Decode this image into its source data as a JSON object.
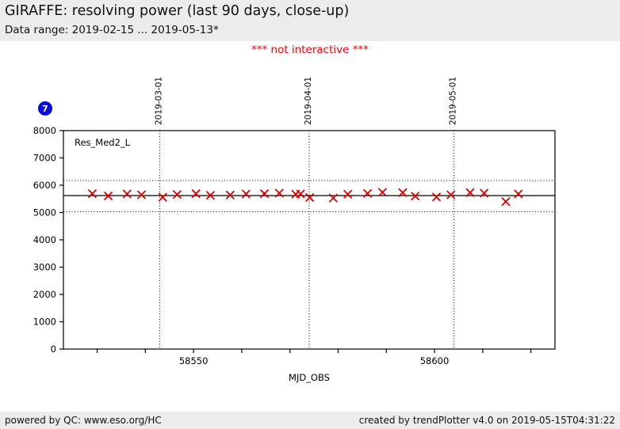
{
  "header": {
    "title": "GIRAFFE: resolving power (last 90 days, close-up)",
    "subtitle": "Data range: 2019-02-15 ... 2019-05-13*"
  },
  "warning": "*** not interactive ***",
  "badge": "7",
  "footer": {
    "left": "powered by QC: www.eso.org/HC",
    "right": "created by trendPlotter v4.0 on 2019-05-15T04:31:22"
  },
  "colors": {
    "band_bg": "#ececec",
    "warning_text": "#ff0000",
    "badge_bg": "#0a0ad8",
    "marker": "#dd0000",
    "axis": "#000000"
  },
  "chart_data": {
    "type": "scatter",
    "series_label": "Res_Med2_L",
    "xlabel": "MJD_OBS",
    "xlim": [
      58523,
      58625
    ],
    "ylim": [
      0,
      8000
    ],
    "grid": "dotted date gridlines only",
    "marker": "x",
    "marker_color": "#dd0000",
    "yticks": [
      0,
      1000,
      2000,
      3000,
      4000,
      5000,
      6000,
      7000,
      8000
    ],
    "xticks": [
      58530,
      58540,
      58550,
      58560,
      58570,
      58580,
      58590,
      58600,
      58610,
      58620
    ],
    "xtick_labels": [
      {
        "value": 58550,
        "text": "58550"
      },
      {
        "value": 58600,
        "text": "58600"
      }
    ],
    "date_lines": [
      {
        "mjd": 58543,
        "label": "2019-03-01"
      },
      {
        "mjd": 58574,
        "label": "2019-04-01"
      },
      {
        "mjd": 58604,
        "label": "2019-05-01"
      }
    ],
    "avg_line": 5620,
    "threshold_lines": [
      6170,
      5030
    ],
    "points": [
      [
        58529.0,
        5690
      ],
      [
        58532.3,
        5610
      ],
      [
        58536.2,
        5680
      ],
      [
        58539.2,
        5650
      ],
      [
        58543.6,
        5560
      ],
      [
        58546.6,
        5660
      ],
      [
        58550.5,
        5690
      ],
      [
        58553.5,
        5630
      ],
      [
        58557.6,
        5640
      ],
      [
        58560.9,
        5680
      ],
      [
        58564.7,
        5690
      ],
      [
        58567.8,
        5710
      ],
      [
        58571.2,
        5670
      ],
      [
        58572.2,
        5680
      ],
      [
        58574.1,
        5550
      ],
      [
        58579.0,
        5530
      ],
      [
        58582.0,
        5670
      ],
      [
        58586.1,
        5700
      ],
      [
        58589.2,
        5740
      ],
      [
        58593.4,
        5730
      ],
      [
        58596.0,
        5600
      ],
      [
        58600.4,
        5570
      ],
      [
        58603.4,
        5650
      ],
      [
        58607.4,
        5730
      ],
      [
        58610.3,
        5710
      ],
      [
        58614.8,
        5400
      ],
      [
        58617.4,
        5680
      ]
    ]
  }
}
